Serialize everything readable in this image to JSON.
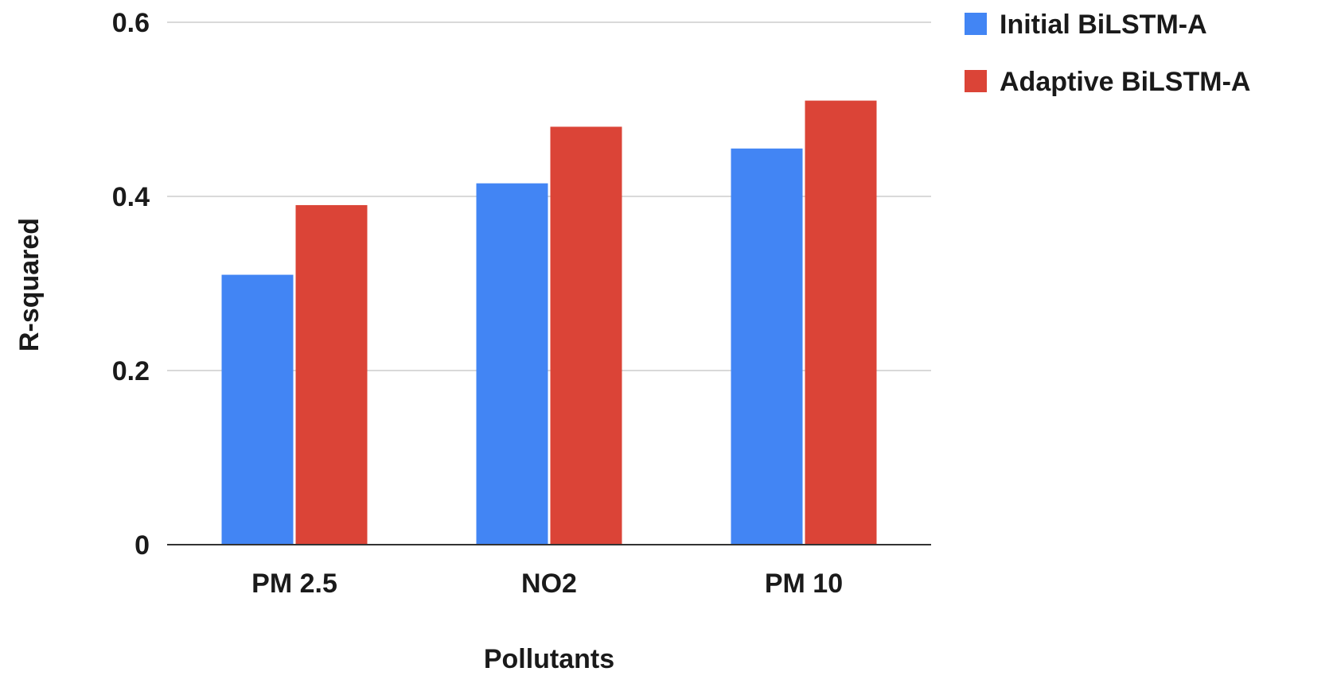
{
  "chart_data": {
    "type": "bar",
    "title": "",
    "xlabel": "Pollutants",
    "ylabel": "R-squared",
    "categories": [
      "PM 2.5",
      "NO2",
      "PM 10"
    ],
    "series": [
      {
        "name": "Initial BiLSTM-A",
        "color": "#4285f4",
        "values": [
          0.31,
          0.415,
          0.455
        ]
      },
      {
        "name": "Adaptive BiLSTM-A",
        "color": "#db4437",
        "values": [
          0.39,
          0.48,
          0.51
        ]
      }
    ],
    "ylim": [
      0,
      0.6
    ],
    "yticks": [
      0,
      0.2,
      0.4,
      0.6
    ],
    "ytick_labels": [
      "0",
      "0.2",
      "0.4",
      "0.6"
    ],
    "grid": true,
    "legend_position": "top-right"
  },
  "colors": {
    "gridline": "#d9d9d9",
    "baseline": "#333333"
  }
}
